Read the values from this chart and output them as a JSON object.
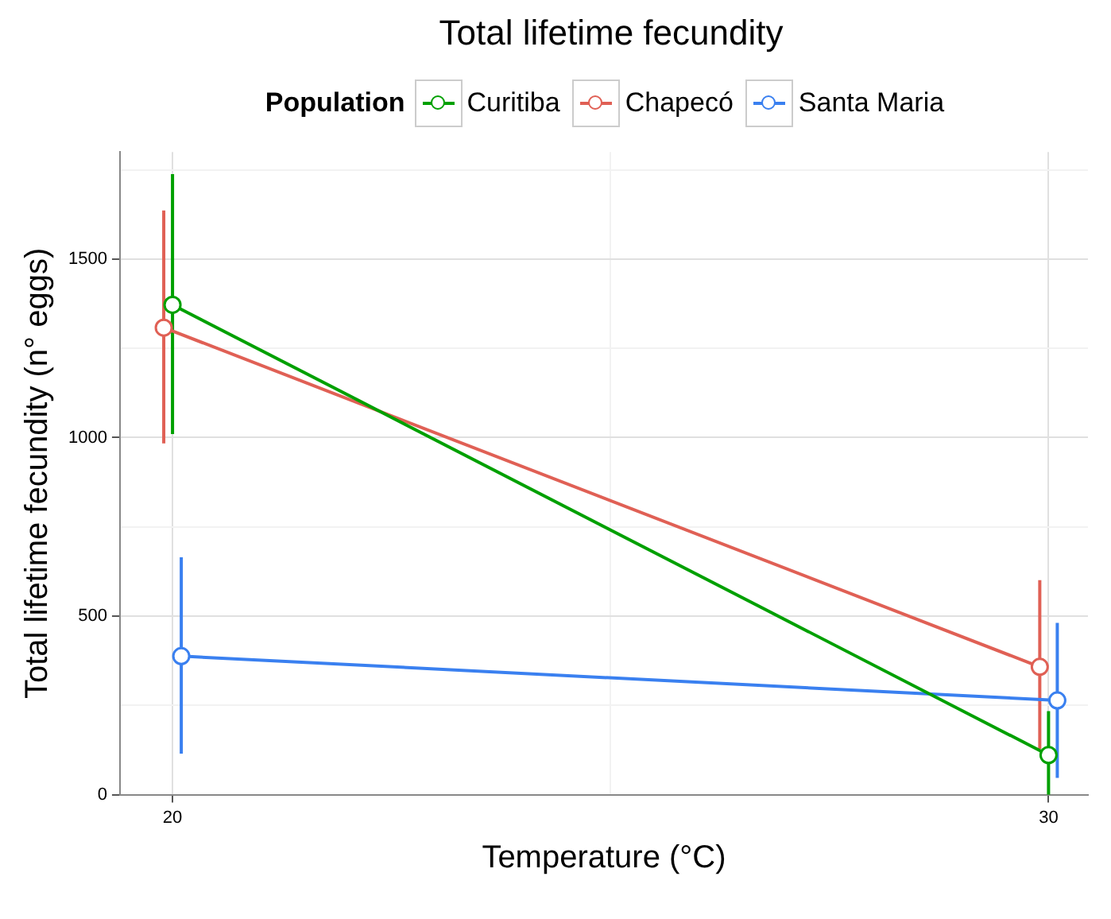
{
  "chart_data": {
    "type": "line",
    "title": "Total lifetime fecundity",
    "xlabel": "Temperature (°C)",
    "ylabel": "Total lifetime fecundity (n° eggs)",
    "legend_title": "Population",
    "legend": "top",
    "grid": true,
    "marker": "circle",
    "line_style": "solid",
    "xlim": [
      19.4,
      30.45
    ],
    "xticks": [
      20,
      {
        "value": 25,
        "label": null
      },
      30
    ],
    "ylim": [
      0,
      1800
    ],
    "yticks": [
      0,
      {
        "value": 250,
        "label": null
      },
      500,
      {
        "value": 750,
        "label": null
      },
      1000,
      {
        "value": 1250,
        "label": null
      },
      1500,
      {
        "value": 1750,
        "label": null
      }
    ],
    "series": [
      {
        "name": "Curitiba",
        "color": "#00a000",
        "x": [
          20,
          30
        ],
        "values": [
          1372,
          111
        ],
        "errors": [
          [
            1010,
            1738
          ],
          [
            0,
            234
          ]
        ]
      },
      {
        "name": "Chapecó",
        "color": "#e06055",
        "x": [
          19.9,
          29.9
        ],
        "values": [
          1308,
          358
        ],
        "errors": [
          [
            984,
            1636
          ],
          [
            128,
            601
          ]
        ]
      },
      {
        "name": "Santa Maria",
        "color": "#3a80f0",
        "x": [
          20.1,
          30.1
        ],
        "values": [
          388,
          264
        ],
        "errors": [
          [
            115,
            665
          ],
          [
            47,
            481
          ]
        ]
      }
    ]
  }
}
